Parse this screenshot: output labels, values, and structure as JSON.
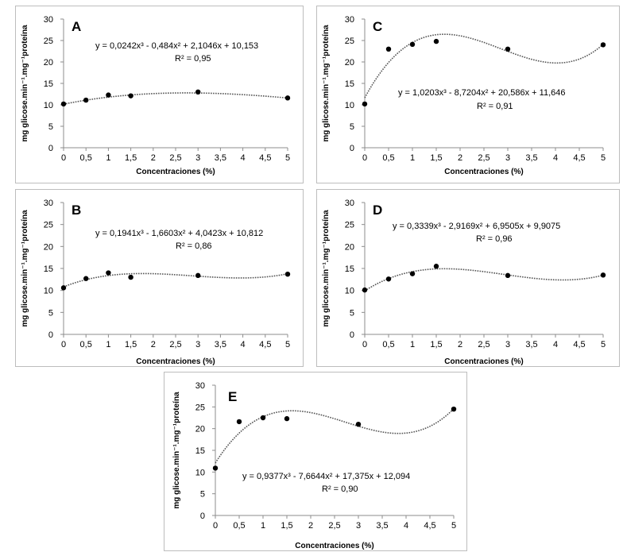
{
  "chart_data": [
    {
      "id": "A",
      "type": "scatter",
      "title": "A",
      "x": [
        0,
        0.5,
        1,
        1.5,
        3,
        5
      ],
      "y": [
        10.2,
        11.1,
        12.3,
        12.1,
        13.0,
        11.6
      ],
      "trendline": {
        "type": "polynomial",
        "coefficients": [
          0.0242,
          -0.484,
          2.1046,
          10.153
        ]
      },
      "equation_text": "y = 0,0242x³ - 0,484x² + 2,1046x + 10,153",
      "r2_text": "R² = 0,95",
      "xlabel": "Concentraciones (%)",
      "ylabel": "mg glicose.min⁻¹.mg⁻¹proteína",
      "xlim": [
        0,
        5
      ],
      "ylim": [
        0,
        30
      ],
      "xticks": [
        "0",
        "0,5",
        "1",
        "1,5",
        "2",
        "2,5",
        "3",
        "3,5",
        "4",
        "4,5",
        "5"
      ],
      "yticks": [
        "0",
        "5",
        "10",
        "15",
        "20",
        "25",
        "30"
      ]
    },
    {
      "id": "C",
      "type": "scatter",
      "title": "C",
      "x": [
        0,
        0.5,
        1,
        1.5,
        3,
        5
      ],
      "y": [
        10.2,
        23.0,
        24.1,
        24.8,
        23.0,
        24.0
      ],
      "trendline": {
        "type": "polynomial",
        "coefficients": [
          1.0203,
          -8.7204,
          20.586,
          11.646
        ]
      },
      "equation_text": "y = 1,0203x³ - 8,7204x² + 20,586x + 11,646",
      "r2_text": "R² = 0,91",
      "xlabel": "Concentraciones (%)",
      "ylabel": "mg glicose.min⁻¹.mg⁻¹proteína",
      "xlim": [
        0,
        5
      ],
      "ylim": [
        0,
        30
      ],
      "xticks": [
        "0",
        "0,5",
        "1",
        "1,5",
        "2",
        "2,5",
        "3",
        "3,5",
        "4",
        "4,5",
        "5"
      ],
      "yticks": [
        "0",
        "5",
        "10",
        "15",
        "20",
        "25",
        "30"
      ]
    },
    {
      "id": "B",
      "type": "scatter",
      "title": "B",
      "x": [
        0,
        0.5,
        1,
        1.5,
        3,
        5
      ],
      "y": [
        10.6,
        12.7,
        14.0,
        13.0,
        13.4,
        13.7
      ],
      "trendline": {
        "type": "polynomial",
        "coefficients": [
          0.1941,
          -1.6603,
          4.0423,
          10.812
        ]
      },
      "equation_text": "y = 0,1941x³ - 1,6603x² + 4,0423x + 10,812",
      "r2_text": "R² = 0,86",
      "xlabel": "Concentraciones (%)",
      "ylabel": "mg glicose.min⁻¹.mg⁻¹proteína",
      "xlim": [
        0,
        5
      ],
      "ylim": [
        0,
        30
      ],
      "xticks": [
        "0",
        "0,5",
        "1",
        "1,5",
        "2",
        "2,5",
        "3",
        "3,5",
        "4",
        "4,5",
        "5"
      ],
      "yticks": [
        "0",
        "5",
        "10",
        "15",
        "20",
        "25",
        "30"
      ]
    },
    {
      "id": "D",
      "type": "scatter",
      "title": "D",
      "x": [
        0,
        0.5,
        1,
        1.5,
        3,
        5
      ],
      "y": [
        10.1,
        12.6,
        13.8,
        15.5,
        13.4,
        13.5
      ],
      "trendline": {
        "type": "polynomial",
        "coefficients": [
          0.3339,
          -2.9169,
          6.9505,
          9.9075
        ]
      },
      "equation_text": "y = 0,3339x³ - 2,9169x² + 6,9505x + 9,9075",
      "r2_text": "R² = 0,96",
      "xlabel": "Concentraciones (%)",
      "ylabel": "mg glicose.min⁻¹.mg⁻¹proteína",
      "xlim": [
        0,
        5
      ],
      "ylim": [
        0,
        30
      ],
      "xticks": [
        "0",
        "0,5",
        "1",
        "1,5",
        "2",
        "2,5",
        "3",
        "3,5",
        "4",
        "4,5",
        "5"
      ],
      "yticks": [
        "0",
        "5",
        "10",
        "15",
        "20",
        "25",
        "30"
      ]
    },
    {
      "id": "E",
      "type": "scatter",
      "title": "E",
      "x": [
        0,
        0.5,
        1,
        1.5,
        3,
        5
      ],
      "y": [
        10.9,
        21.6,
        22.5,
        22.3,
        21.0,
        24.5
      ],
      "trendline": {
        "type": "polynomial",
        "coefficients": [
          0.9377,
          -7.6644,
          17.375,
          12.094
        ]
      },
      "equation_text": "y = 0,9377x³ - 7,6644x² + 17,375x + 12,094",
      "r2_text": "R² = 0,90",
      "xlabel": "Concentraciones (%)",
      "ylabel": "mg glicose.min⁻¹.mg⁻¹proteína",
      "xlim": [
        0,
        5
      ],
      "ylim": [
        0,
        30
      ],
      "xticks": [
        "0",
        "0,5",
        "1",
        "1,5",
        "2",
        "2,5",
        "3",
        "3,5",
        "4",
        "4,5",
        "5"
      ],
      "yticks": [
        "0",
        "5",
        "10",
        "15",
        "20",
        "25",
        "30"
      ]
    }
  ]
}
